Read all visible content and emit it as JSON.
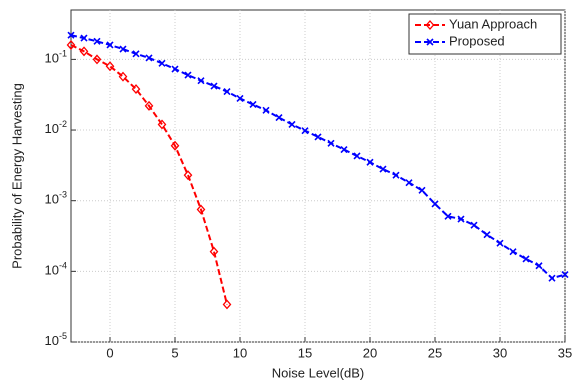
{
  "chart_data": {
    "type": "line",
    "xlabel": "Noise Level(dB)",
    "ylabel": "Probability of Energy Harvesting",
    "xlim": [
      -3,
      35
    ],
    "xticks": [
      0,
      5,
      10,
      15,
      20,
      25,
      30,
      35
    ],
    "ylim": [
      1e-05,
      0.5
    ],
    "log_y": true,
    "yticks": [
      {
        "value": 1e-05,
        "label": "10-5"
      },
      {
        "value": 0.0001,
        "label": "10-4"
      },
      {
        "value": 0.001,
        "label": "10-3"
      },
      {
        "value": 0.01,
        "label": "10-2"
      },
      {
        "value": 0.1,
        "label": "10-1"
      }
    ],
    "grid": true,
    "legend": "upper right",
    "series": [
      {
        "name": "Yuan Approach",
        "color": "#ff0000",
        "marker": "diamond",
        "x": [
          -3,
          -2,
          -1,
          0,
          1,
          2,
          3,
          4,
          5,
          6,
          7,
          8,
          9
        ],
        "values": [
          0.16,
          0.13,
          0.1,
          0.08,
          0.057,
          0.038,
          0.022,
          0.012,
          0.006,
          0.0023,
          0.00075,
          0.00019,
          3.4e-05
        ]
      },
      {
        "name": "Proposed",
        "color": "#0000ff",
        "marker": "x",
        "x": [
          -3,
          -2,
          -1,
          0,
          1,
          2,
          3,
          4,
          5,
          6,
          7,
          8,
          9,
          10,
          11,
          12,
          13,
          14,
          15,
          16,
          17,
          18,
          19,
          20,
          21,
          22,
          23,
          24,
          25,
          26,
          27,
          28,
          29,
          30,
          31,
          32,
          33,
          34,
          35
        ],
        "values": [
          0.22,
          0.2,
          0.18,
          0.16,
          0.14,
          0.12,
          0.105,
          0.088,
          0.073,
          0.06,
          0.05,
          0.042,
          0.035,
          0.028,
          0.023,
          0.019,
          0.015,
          0.012,
          0.0098,
          0.008,
          0.0065,
          0.0053,
          0.0043,
          0.0035,
          0.0028,
          0.0023,
          0.0018,
          0.0014,
          0.0009,
          0.0006,
          0.00055,
          0.00045,
          0.00033,
          0.00025,
          0.00019,
          0.00015,
          0.00012,
          8e-05,
          9e-05
        ]
      }
    ]
  }
}
